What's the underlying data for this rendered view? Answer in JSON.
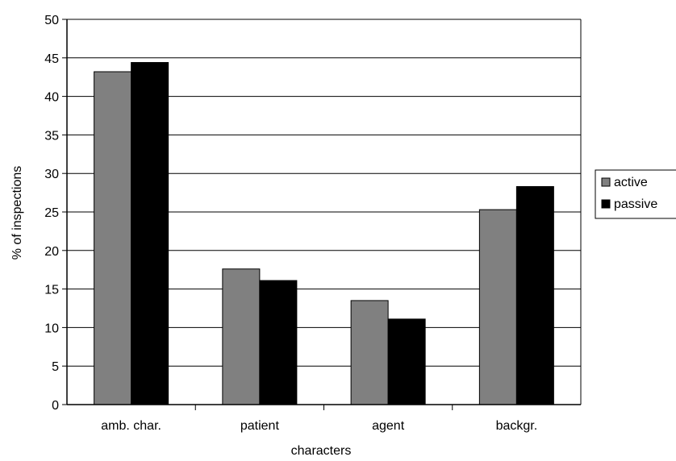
{
  "chart_data": {
    "type": "bar",
    "categories": [
      "amb. char.",
      "patient",
      "agent",
      "backgr."
    ],
    "series": [
      {
        "name": "active",
        "values": [
          43.2,
          17.6,
          13.5,
          25.3
        ],
        "color": "#808080"
      },
      {
        "name": "passive",
        "values": [
          44.4,
          16.1,
          11.1,
          28.3
        ],
        "color": "#000000"
      }
    ],
    "xlabel": "characters",
    "ylabel": "% of inspections",
    "ylim": [
      0,
      50
    ],
    "yticks": [
      0,
      5,
      10,
      15,
      20,
      25,
      30,
      35,
      40,
      45,
      50
    ],
    "grid": true,
    "legend": "right"
  }
}
